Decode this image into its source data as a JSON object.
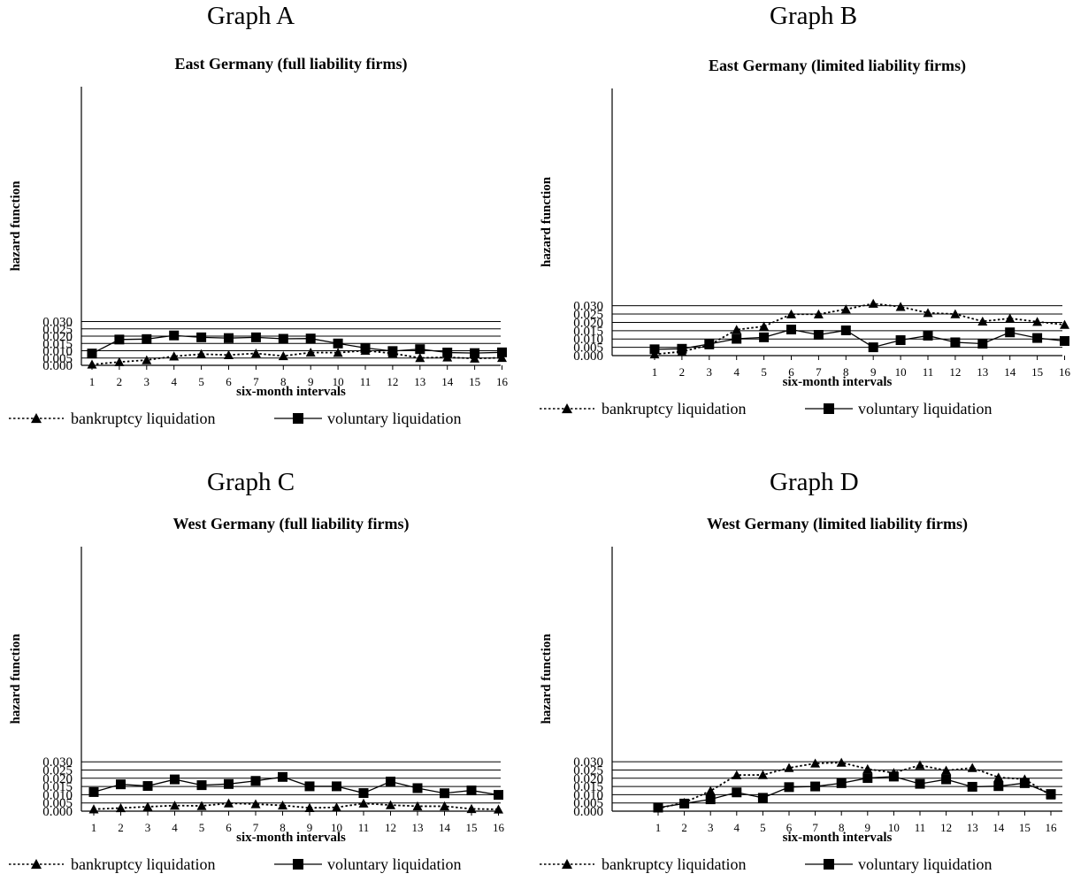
{
  "chart_data": [
    {
      "panel_label": "Graph A",
      "type": "line",
      "title": "East Germany (full liability firms)",
      "xlabel": "six-month intervals",
      "ylabel": "hazard function",
      "categories": [
        "1",
        "2",
        "3",
        "4",
        "5",
        "6",
        "7",
        "8",
        "9",
        "10",
        "11",
        "12",
        "13",
        "14",
        "15",
        "16"
      ],
      "ylim": [
        0,
        0.032
      ],
      "yticks": [
        "0.000",
        "0.005",
        "0.010",
        "0.015",
        "0.020",
        "0.025",
        "0.030"
      ],
      "ytick_values": [
        0,
        0.005,
        0.01,
        0.015,
        0.02,
        0.025,
        0.03
      ],
      "grid": true,
      "legend_position": "bottom",
      "series": [
        {
          "name": "bankruptcy liquidation",
          "marker": "triangle",
          "line": "dotted",
          "values": [
            0.0006,
            0.0023,
            0.0036,
            0.0062,
            0.0077,
            0.0071,
            0.0082,
            0.0064,
            0.0088,
            0.0087,
            0.0101,
            0.0082,
            0.0051,
            0.0055,
            0.0047,
            0.0052
          ]
        },
        {
          "name": "voluntary liquidation",
          "marker": "square",
          "line": "solid",
          "values": [
            0.0081,
            0.0177,
            0.018,
            0.0205,
            0.0192,
            0.0187,
            0.0192,
            0.0182,
            0.0184,
            0.015,
            0.0119,
            0.0098,
            0.0111,
            0.0088,
            0.0084,
            0.0089
          ]
        }
      ]
    },
    {
      "panel_label": "Graph B",
      "type": "line",
      "title": "East Germany (limited liability firms)",
      "xlabel": "six-month intervals",
      "ylabel": "hazard function",
      "categories": [
        "1",
        "2",
        "3",
        "4",
        "5",
        "6",
        "7",
        "8",
        "9",
        "10",
        "11",
        "12",
        "13",
        "14",
        "15",
        "16"
      ],
      "ylim": [
        0,
        0.032
      ],
      "yticks": [
        "0.000",
        "0.005",
        "0.010",
        "0.015",
        "0.020",
        "0.025",
        "0.030"
      ],
      "ytick_values": [
        0,
        0.005,
        0.01,
        0.015,
        0.02,
        0.025,
        0.03
      ],
      "grid": true,
      "legend_position": "bottom",
      "series": [
        {
          "name": "bankruptcy liquidation",
          "marker": "triangle",
          "line": "dotted",
          "values": [
            0.0008,
            0.0024,
            0.0063,
            0.0156,
            0.0176,
            0.0249,
            0.0249,
            0.0279,
            0.0313,
            0.0294,
            0.0257,
            0.025,
            0.0206,
            0.0224,
            0.0204,
            0.0186
          ]
        },
        {
          "name": "voluntary liquidation",
          "marker": "square",
          "line": "solid",
          "values": [
            0.0038,
            0.0041,
            0.007,
            0.0101,
            0.011,
            0.0157,
            0.0125,
            0.0152,
            0.005,
            0.0093,
            0.012,
            0.008,
            0.0072,
            0.014,
            0.0106,
            0.0088
          ]
        }
      ]
    },
    {
      "panel_label": "Graph C",
      "type": "line",
      "title": "West Germany (full liability firms)",
      "xlabel": "six-month intervals",
      "ylabel": "hazard function",
      "categories": [
        "1",
        "2",
        "3",
        "4",
        "5",
        "6",
        "7",
        "8",
        "9",
        "10",
        "11",
        "12",
        "13",
        "14",
        "15",
        "16"
      ],
      "ylim": [
        0,
        0.032
      ],
      "yticks": [
        "0.000",
        "0.005",
        "0.010",
        "0.015",
        "0.020",
        "0.025",
        "0.030"
      ],
      "ytick_values": [
        0,
        0.005,
        0.01,
        0.015,
        0.02,
        0.025,
        0.03
      ],
      "grid": true,
      "legend_position": "bottom",
      "series": [
        {
          "name": "bankruptcy liquidation",
          "marker": "triangle",
          "line": "dotted",
          "values": [
            0.0012,
            0.0019,
            0.0027,
            0.0034,
            0.0032,
            0.0048,
            0.0043,
            0.0035,
            0.002,
            0.0023,
            0.0047,
            0.0037,
            0.003,
            0.003,
            0.0014,
            0.0011
          ]
        },
        {
          "name": "voluntary liquidation",
          "marker": "square",
          "line": "solid",
          "values": [
            0.0116,
            0.0163,
            0.0153,
            0.0193,
            0.0158,
            0.0165,
            0.0184,
            0.0208,
            0.0151,
            0.0151,
            0.011,
            0.018,
            0.014,
            0.0109,
            0.0126,
            0.0099
          ]
        }
      ]
    },
    {
      "panel_label": "Graph D",
      "type": "line",
      "title": "West Germany (limited liability firms)",
      "xlabel": "six-month intervals",
      "ylabel": "hazard function",
      "categories": [
        "1",
        "2",
        "3",
        "4",
        "5",
        "6",
        "7",
        "8",
        "9",
        "10",
        "11",
        "12",
        "13",
        "14",
        "15",
        "16"
      ],
      "ylim": [
        0,
        0.032
      ],
      "yticks": [
        "0.000",
        "0.005",
        "0.010",
        "0.015",
        "0.020",
        "0.025",
        "0.030"
      ],
      "ytick_values": [
        0,
        0.005,
        0.01,
        0.015,
        0.02,
        0.025,
        0.03
      ],
      "grid": true,
      "legend_position": "bottom",
      "series": [
        {
          "name": "bankruptcy liquidation",
          "marker": "triangle",
          "line": "dotted",
          "values": [
            0.0017,
            0.0052,
            0.0123,
            0.0219,
            0.022,
            0.0263,
            0.029,
            0.0295,
            0.0256,
            0.0233,
            0.0279,
            0.0247,
            0.0263,
            0.0205,
            0.0194,
            0.0096
          ]
        },
        {
          "name": "voluntary liquidation",
          "marker": "square",
          "line": "solid",
          "values": [
            0.0022,
            0.0046,
            0.0072,
            0.0114,
            0.0081,
            0.0146,
            0.015,
            0.017,
            0.0201,
            0.021,
            0.0166,
            0.0193,
            0.0148,
            0.0152,
            0.017,
            0.0104
          ]
        }
      ]
    }
  ]
}
